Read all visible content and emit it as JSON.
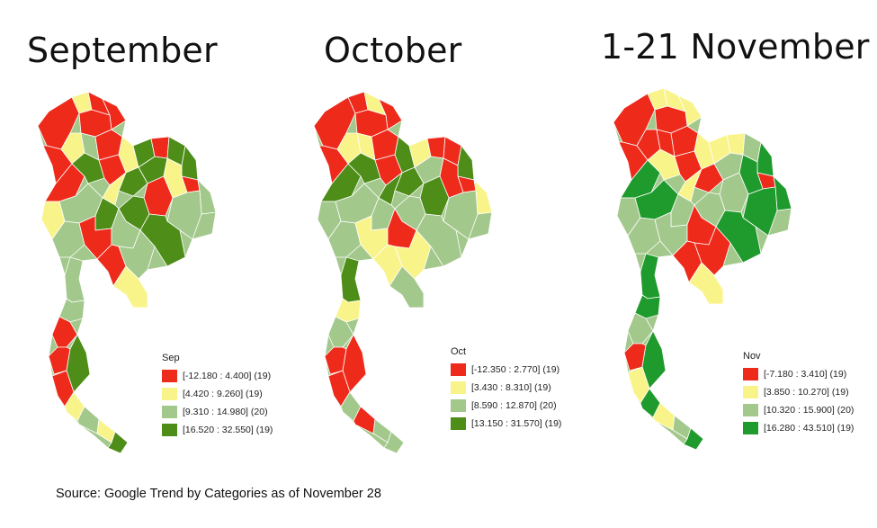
{
  "source_note": "Source: Google Trend by Categories as of November 28",
  "colors": {
    "q1": "#ee2a1b",
    "q2": "#f9f48a",
    "q3": "#a3c88c",
    "q4": "#4d8d18",
    "q4_nov": "#1f9a2c"
  },
  "panels": [
    {
      "title": "September",
      "legend": {
        "title": "Sep",
        "items": [
          {
            "label": "[-12.180 : 4.400] (19)",
            "color": "#ee2a1b"
          },
          {
            "label": "[4.420 : 9.260] (19)",
            "color": "#f9f48a"
          },
          {
            "label": "[9.310 : 14.980] (20)",
            "color": "#a3c88c"
          },
          {
            "label": "[16.520 : 32.550] (19)",
            "color": "#4d8d18"
          }
        ]
      }
    },
    {
      "title": "October",
      "legend": {
        "title": "Oct",
        "items": [
          {
            "label": "[-12.350 : 2.770] (19)",
            "color": "#ee2a1b"
          },
          {
            "label": "[3.430 : 8.310] (19)",
            "color": "#f9f48a"
          },
          {
            "label": "[8.590 : 12.870] (20)",
            "color": "#a3c88c"
          },
          {
            "label": "[13.150 : 31.570] (19)",
            "color": "#4d8d18"
          }
        ]
      }
    },
    {
      "title": "1-21 November",
      "legend": {
        "title": "Nov",
        "items": [
          {
            "label": "[-7.180 : 3.410] (19)",
            "color": "#ee2a1b"
          },
          {
            "label": "[3.850 : 10.270] (19)",
            "color": "#f9f48a"
          },
          {
            "label": "[10.320 : 15.900] (20)",
            "color": "#a3c88c"
          },
          {
            "label": "[16.280 : 43.510] (19)",
            "color": "#1f9a2c"
          }
        ]
      }
    }
  ]
}
